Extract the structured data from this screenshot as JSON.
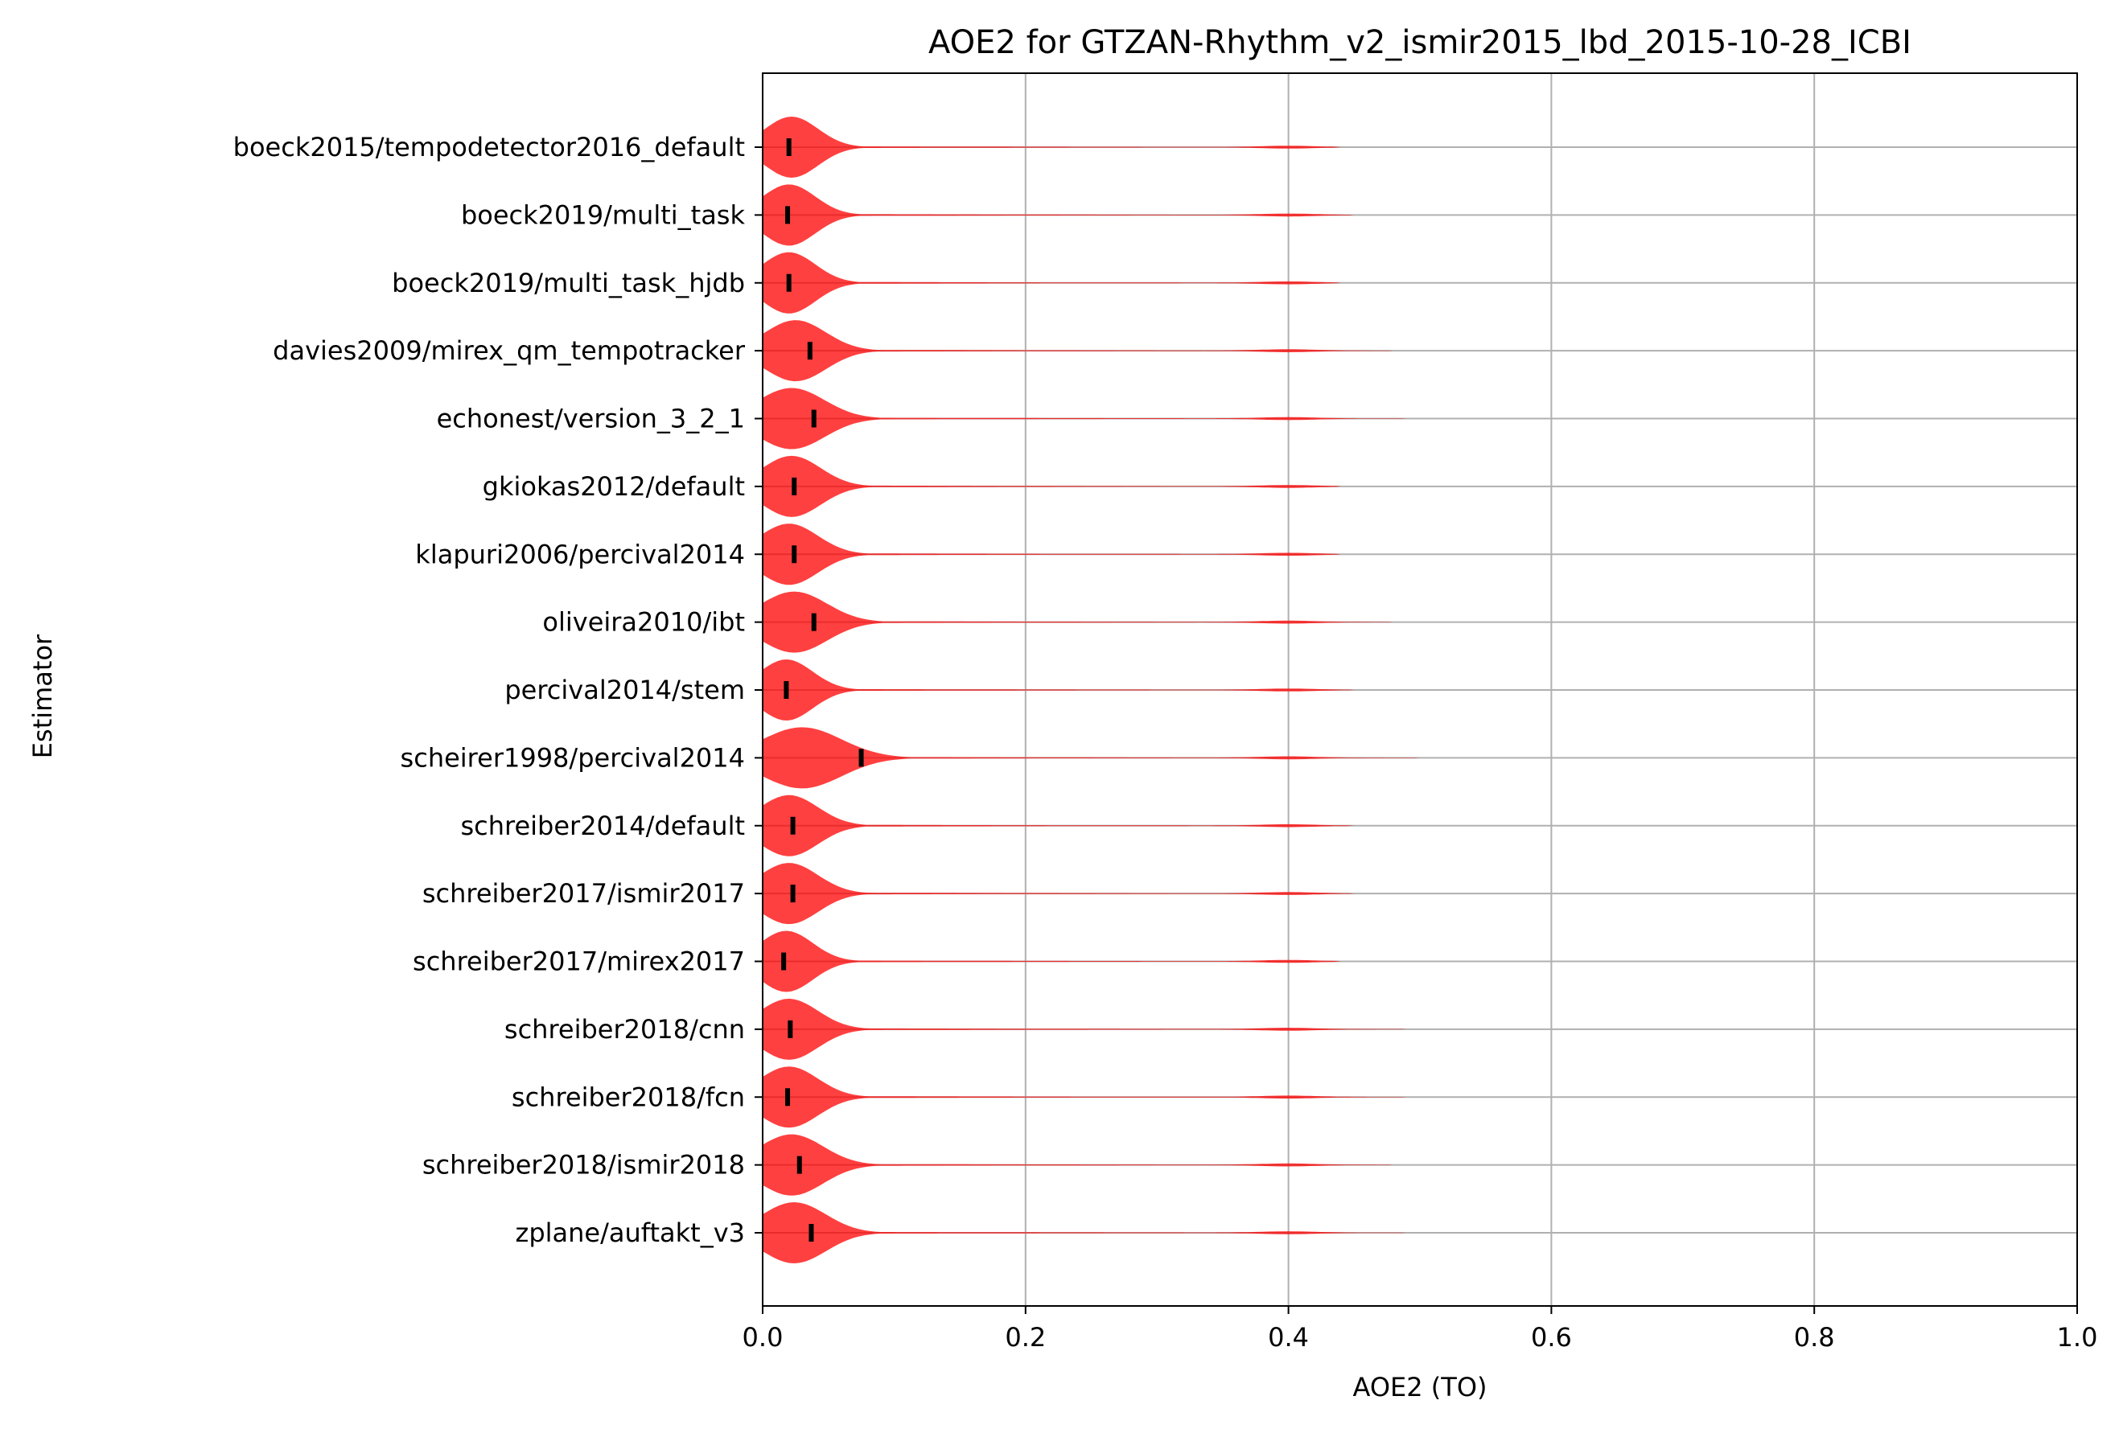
{
  "chart_data": {
    "type": "violin",
    "orientation": "horizontal",
    "title": "AOE2 for GTZAN-Rhythm_v2_ismir2015_lbd_2015-10-28_ICBI",
    "xlabel": "AOE2 (TO)",
    "ylabel": "Estimator",
    "xlim": [
      0.0,
      1.0
    ],
    "xticks": [
      "0.0",
      "0.2",
      "0.4",
      "0.6",
      "0.8",
      "1.0"
    ],
    "grid": true,
    "violin_color": "#ff0000",
    "median_color": "#000000",
    "categories": [
      "boeck2015/tempodetector2016_default",
      "boeck2019/multi_task",
      "boeck2019/multi_task_hjdb",
      "davies2009/mirex_qm_tempotracker",
      "echonest/version_3_2_1",
      "gkiokas2012/default",
      "klapuri2006/percival2014",
      "oliveira2010/ibt",
      "percival2014/stem",
      "scheirer1998/percival2014",
      "schreiber2014/default",
      "schreiber2017/ismir2017",
      "schreiber2017/mirex2017",
      "schreiber2018/cnn",
      "schreiber2018/fcn",
      "schreiber2018/ismir2018",
      "zplane/auftakt_v3"
    ],
    "series": [
      {
        "median": 0.02,
        "max": 0.44,
        "peak": 0.022,
        "spread": 0.02
      },
      {
        "median": 0.019,
        "max": 0.45,
        "peak": 0.02,
        "spread": 0.02
      },
      {
        "median": 0.02,
        "max": 0.44,
        "peak": 0.02,
        "spread": 0.02
      },
      {
        "median": 0.036,
        "max": 0.48,
        "peak": 0.025,
        "spread": 0.023
      },
      {
        "median": 0.039,
        "max": 0.49,
        "peak": 0.022,
        "spread": 0.025
      },
      {
        "median": 0.024,
        "max": 0.44,
        "peak": 0.022,
        "spread": 0.022
      },
      {
        "median": 0.024,
        "max": 0.44,
        "peak": 0.02,
        "spread": 0.022
      },
      {
        "median": 0.039,
        "max": 0.48,
        "peak": 0.024,
        "spread": 0.025
      },
      {
        "median": 0.018,
        "max": 0.45,
        "peak": 0.018,
        "spread": 0.02
      },
      {
        "median": 0.075,
        "max": 0.5,
        "peak": 0.03,
        "spread": 0.03
      },
      {
        "median": 0.023,
        "max": 0.45,
        "peak": 0.02,
        "spread": 0.022
      },
      {
        "median": 0.023,
        "max": 0.45,
        "peak": 0.02,
        "spread": 0.022
      },
      {
        "median": 0.016,
        "max": 0.44,
        "peak": 0.018,
        "spread": 0.02
      },
      {
        "median": 0.021,
        "max": 0.49,
        "peak": 0.02,
        "spread": 0.022
      },
      {
        "median": 0.019,
        "max": 0.49,
        "peak": 0.02,
        "spread": 0.022
      },
      {
        "median": 0.028,
        "max": 0.48,
        "peak": 0.022,
        "spread": 0.024
      },
      {
        "median": 0.037,
        "max": 0.49,
        "peak": 0.024,
        "spread": 0.024
      }
    ]
  }
}
